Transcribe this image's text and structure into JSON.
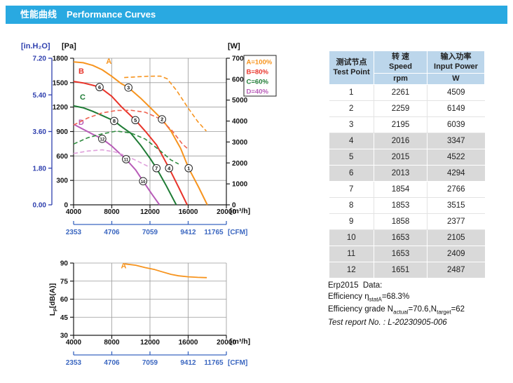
{
  "header": {
    "title_cn": "性能曲线",
    "title_en": "Performance Curves",
    "bg": "#29A9E1"
  },
  "colors": {
    "A": "#F7941E",
    "B": "#E8342A",
    "C": "#1E7B34",
    "D": "#B85CB8",
    "B_dash": "#EF6352",
    "C_dash": "#2F8B3F",
    "D_dash": "#DFA0DB",
    "axis_blue": "#2E3FAE",
    "cfm_blue": "#3A66C0",
    "grid": "#9A9A9A"
  },
  "chart_data": [
    {
      "type": "line",
      "name": "pressure-and-power-curves",
      "x_axis": {
        "label": "[m³/h]",
        "min": 4000,
        "max": 20000,
        "ticks": [
          4000,
          8000,
          12000,
          16000,
          20000
        ]
      },
      "x_axis2": {
        "label": "[CFM]",
        "ticks": [
          2353,
          4706,
          7059,
          9412,
          11765
        ]
      },
      "y_left": {
        "label": "[Pa]",
        "min": 0,
        "max": 1800,
        "ticks": [
          0,
          300,
          600,
          900,
          1200,
          1500,
          1800
        ]
      },
      "y_left2": {
        "label": "[in.H₂O]",
        "min": 0,
        "max": 7.2,
        "ticks": [
          "0.00",
          "1.80",
          "3.60",
          "5.40",
          "7.20"
        ]
      },
      "y_right": {
        "label": "[W]",
        "min": 0,
        "max": 7000,
        "ticks": [
          0,
          1000,
          2000,
          3000,
          4000,
          5000,
          6000,
          7000
        ]
      },
      "legend": [
        {
          "label": "A=100%",
          "color": "#F7941E"
        },
        {
          "label": "B=80%",
          "color": "#E8342A"
        },
        {
          "label": "C=60%",
          "color": "#1E7B34"
        },
        {
          "label": "D=40%",
          "color": "#B85CB8"
        }
      ],
      "series": [
        {
          "name": "A-pressure",
          "axis": "left",
          "style": "solid",
          "color": "#F7941E",
          "label": "A",
          "label_at": [
            7400,
            1730
          ],
          "points": [
            [
              4000,
              1755
            ],
            [
              5000,
              1745
            ],
            [
              6000,
              1712
            ],
            [
              7000,
              1658
            ],
            [
              8000,
              1578
            ],
            [
              9000,
              1487
            ],
            [
              9740,
              1440
            ],
            [
              11000,
              1312
            ],
            [
              12100,
              1185
            ],
            [
              13260,
              1050
            ],
            [
              14200,
              905
            ],
            [
              15200,
              695
            ],
            [
              16050,
              450
            ],
            [
              17100,
              215
            ],
            [
              18000,
              0
            ]
          ]
        },
        {
          "name": "B-pressure",
          "axis": "left",
          "style": "solid",
          "color": "#E8342A",
          "label": "B",
          "label_at": [
            4510,
            1610
          ],
          "points": [
            [
              4000,
              1515
            ],
            [
              5000,
              1497
            ],
            [
              6000,
              1468
            ],
            [
              6720,
              1445
            ],
            [
              8000,
              1332
            ],
            [
              9000,
              1205
            ],
            [
              10470,
              1040
            ],
            [
              11500,
              905
            ],
            [
              12700,
              735
            ],
            [
              14000,
              450
            ],
            [
              15000,
              215
            ],
            [
              15900,
              0
            ]
          ]
        },
        {
          "name": "C-pressure",
          "axis": "left",
          "style": "solid",
          "color": "#1E7B34",
          "label": "C",
          "label_at": [
            4660,
            1292
          ],
          "points": [
            [
              4000,
              1215
            ],
            [
              5000,
              1192
            ],
            [
              6000,
              1148
            ],
            [
              7000,
              1096
            ],
            [
              8250,
              1030
            ],
            [
              9000,
              962
            ],
            [
              10000,
              878
            ],
            [
              11000,
              735
            ],
            [
              12000,
              572
            ],
            [
              12680,
              450
            ],
            [
              13700,
              235
            ],
            [
              14750,
              0
            ]
          ]
        },
        {
          "name": "D-pressure",
          "axis": "left",
          "style": "solid",
          "color": "#B85CB8",
          "label": "D",
          "label_at": [
            4500,
            980
          ],
          "points": [
            [
              4000,
              990
            ],
            [
              5000,
              928
            ],
            [
              6000,
              866
            ],
            [
              7000,
              810
            ],
            [
              8000,
              722
            ],
            [
              9000,
              612
            ],
            [
              9500,
              560
            ],
            [
              10500,
              428
            ],
            [
              11280,
              290
            ],
            [
              12200,
              132
            ],
            [
              13000,
              0
            ]
          ]
        },
        {
          "name": "A-power",
          "axis": "right",
          "style": "dashed",
          "color": "#F7941E",
          "points": [
            [
              9300,
              6075
            ],
            [
              10500,
              6110
            ],
            [
              11800,
              6140
            ],
            [
              13100,
              6145
            ],
            [
              13800,
              6020
            ],
            [
              14800,
              5450
            ],
            [
              16000,
              4620
            ],
            [
              17000,
              3980
            ],
            [
              17900,
              3520
            ]
          ]
        },
        {
          "name": "B-power",
          "axis": "right",
          "style": "dashed",
          "color": "#EF6352",
          "points": [
            [
              4000,
              3810
            ],
            [
              5500,
              4150
            ],
            [
              7000,
              4390
            ],
            [
              8500,
              4505
            ],
            [
              10000,
              4515
            ],
            [
              11500,
              4420
            ],
            [
              13000,
              4120
            ],
            [
              14300,
              3550
            ],
            [
              15400,
              2900
            ],
            [
              15900,
              2700
            ]
          ]
        },
        {
          "name": "C-power",
          "axis": "right",
          "style": "dashed",
          "color": "#2F8B3F",
          "points": [
            [
              4000,
              2905
            ],
            [
              5500,
              3205
            ],
            [
              7000,
              3390
            ],
            [
              8500,
              3520
            ],
            [
              10000,
              3430
            ],
            [
              11500,
              3140
            ],
            [
              13000,
              2610
            ],
            [
              14200,
              2140
            ],
            [
              15000,
              1950
            ]
          ]
        },
        {
          "name": "D-power",
          "axis": "right",
          "style": "dashed",
          "color": "#DFA0DB",
          "points": [
            [
              4000,
              2450
            ],
            [
              5500,
              2570
            ],
            [
              7000,
              2625
            ],
            [
              8300,
              2530
            ],
            [
              9500,
              2345
            ],
            [
              10700,
              2085
            ],
            [
              12000,
              1790
            ]
          ]
        }
      ],
      "markers": [
        {
          "n": 1,
          "x": 16050,
          "y": 450
        },
        {
          "n": 2,
          "x": 13260,
          "y": 1050
        },
        {
          "n": 3,
          "x": 9740,
          "y": 1440
        },
        {
          "n": 4,
          "x": 14000,
          "y": 450
        },
        {
          "n": 5,
          "x": 10470,
          "y": 1040
        },
        {
          "n": 6,
          "x": 6720,
          "y": 1445
        },
        {
          "n": 7,
          "x": 12680,
          "y": 450
        },
        {
          "n": 8,
          "x": 8250,
          "y": 1030
        },
        {
          "n": 10,
          "x": 11280,
          "y": 290
        },
        {
          "n": 11,
          "x": 9500,
          "y": 560
        },
        {
          "n": 12,
          "x": 7000,
          "y": 810
        }
      ]
    },
    {
      "type": "line",
      "name": "sound-pressure-level-curve",
      "x_axis": {
        "label": "[m³/h]",
        "min": 4000,
        "max": 20000,
        "ticks": [
          4000,
          8000,
          12000,
          16000,
          20000
        ]
      },
      "x_axis2": {
        "label": "[CFM]",
        "ticks": [
          2353,
          4706,
          7059,
          9412,
          11765
        ]
      },
      "y_axis": {
        "label_main": "L",
        "label_sub": "p",
        "label_rest": "[dB(A)]",
        "min": 30,
        "max": 90,
        "ticks": [
          30,
          45,
          60,
          75,
          90
        ]
      },
      "series": [
        {
          "name": "A-noise",
          "color": "#F7941E",
          "label": "A",
          "label_at": [
            8950,
            85.5
          ],
          "points": [
            [
              9350,
              89.3
            ],
            [
              10500,
              88.2
            ],
            [
              11500,
              86.2
            ],
            [
              12500,
              84.6
            ],
            [
              13200,
              82.9
            ],
            [
              14200,
              80.6
            ],
            [
              15000,
              79.4
            ],
            [
              16000,
              78.6
            ],
            [
              17000,
              78.1
            ],
            [
              17950,
              77.9
            ]
          ]
        }
      ]
    }
  ],
  "table": {
    "header": {
      "col1_cn": "测试节点",
      "col1_en": "Test Point",
      "col2_cn": "转 速",
      "col2_en": "Speed",
      "col2_unit": "rpm",
      "col3_cn": "输入功率",
      "col3_en": "Input Power",
      "col3_unit": "W"
    },
    "rows": [
      [
        "1",
        "2261",
        "4509"
      ],
      [
        "2",
        "2259",
        "6149"
      ],
      [
        "3",
        "2195",
        "6039"
      ],
      [
        "4",
        "2016",
        "3347"
      ],
      [
        "5",
        "2015",
        "4522"
      ],
      [
        "6",
        "2013",
        "4294"
      ],
      [
        "7",
        "1854",
        "2766"
      ],
      [
        "8",
        "1853",
        "3515"
      ],
      [
        "9",
        "1858",
        "2377"
      ],
      [
        "10",
        "1653",
        "2105"
      ],
      [
        "11",
        "1653",
        "2409"
      ],
      [
        "12",
        "1651",
        "2487"
      ]
    ]
  },
  "erp": {
    "title": "Erp2015  Data:",
    "eff_prefix": "Efficiency η",
    "eff_sub": "statA",
    "eff_value": "=68.3%",
    "grade_prefix": "Efficiency grade N",
    "grade_sub1": "actual",
    "grade_mid": "=70.6,N",
    "grade_sub2": "target",
    "grade_value": "=62",
    "report": "Test report No. : L-20230905-006"
  }
}
